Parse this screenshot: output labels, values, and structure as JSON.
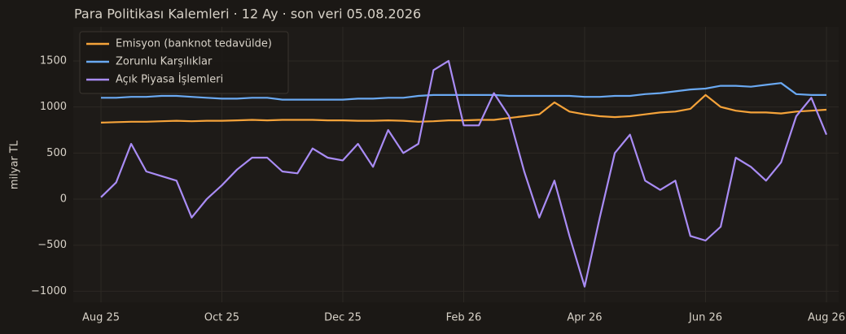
{
  "chart_data": {
    "type": "line",
    "title": "Para Politikası Kalemleri · 12 Ay · son veri 05.08.2026",
    "y_label": "milyar TL",
    "categories": [
      "Aug 25",
      null,
      null,
      null,
      null,
      null,
      null,
      null,
      "Oct 25",
      null,
      null,
      null,
      null,
      null,
      null,
      null,
      "Dec 25",
      null,
      null,
      null,
      null,
      null,
      null,
      null,
      "Feb 26",
      null,
      null,
      null,
      null,
      null,
      null,
      null,
      "Apr 26",
      null,
      null,
      null,
      null,
      null,
      null,
      null,
      "Jun 26",
      null,
      null,
      null,
      null,
      null,
      null,
      null,
      "Aug 26"
    ],
    "series": [
      {
        "name": "Emisyon (banknot tedavülde)",
        "color": "#f5a33a",
        "values": [
          830,
          835,
          840,
          840,
          845,
          850,
          845,
          850,
          850,
          855,
          860,
          855,
          860,
          860,
          860,
          855,
          855,
          850,
          850,
          855,
          850,
          840,
          845,
          855,
          855,
          860,
          860,
          880,
          900,
          920,
          1050,
          950,
          920,
          900,
          890,
          900,
          920,
          940,
          950,
          980,
          1130,
          1000,
          960,
          940,
          940,
          930,
          950,
          960,
          970
        ]
      },
      {
        "name": "Zorunlu Karşılıklar",
        "color": "#6aa9f2",
        "values": [
          1100,
          1100,
          1110,
          1110,
          1120,
          1120,
          1110,
          1100,
          1090,
          1090,
          1100,
          1100,
          1080,
          1080,
          1080,
          1080,
          1080,
          1090,
          1090,
          1100,
          1100,
          1120,
          1130,
          1130,
          1130,
          1130,
          1130,
          1120,
          1120,
          1120,
          1120,
          1120,
          1110,
          1110,
          1120,
          1120,
          1140,
          1150,
          1170,
          1190,
          1200,
          1230,
          1230,
          1220,
          1240,
          1260,
          1140,
          1130,
          1130
        ]
      },
      {
        "name": "Açık Piyasa İşlemleri",
        "color": "#a98cf5",
        "values": [
          20,
          180,
          600,
          300,
          250,
          200,
          -200,
          0,
          150,
          320,
          450,
          450,
          300,
          280,
          550,
          450,
          420,
          600,
          350,
          750,
          500,
          600,
          1400,
          1500,
          800,
          800,
          1150,
          900,
          300,
          -200,
          200,
          -400,
          -950,
          -200,
          500,
          700,
          200,
          100,
          200,
          -400,
          -450,
          -300,
          450,
          350,
          200,
          400,
          900,
          1100,
          700
        ]
      }
    ],
    "ylim": [
      -1120,
      1870
    ],
    "yticks": [
      {
        "value": -1000,
        "label": "−1000"
      },
      {
        "value": -500,
        "label": "−500"
      },
      0,
      500,
      1000,
      1500
    ],
    "grid": true,
    "legend": "upper left"
  }
}
